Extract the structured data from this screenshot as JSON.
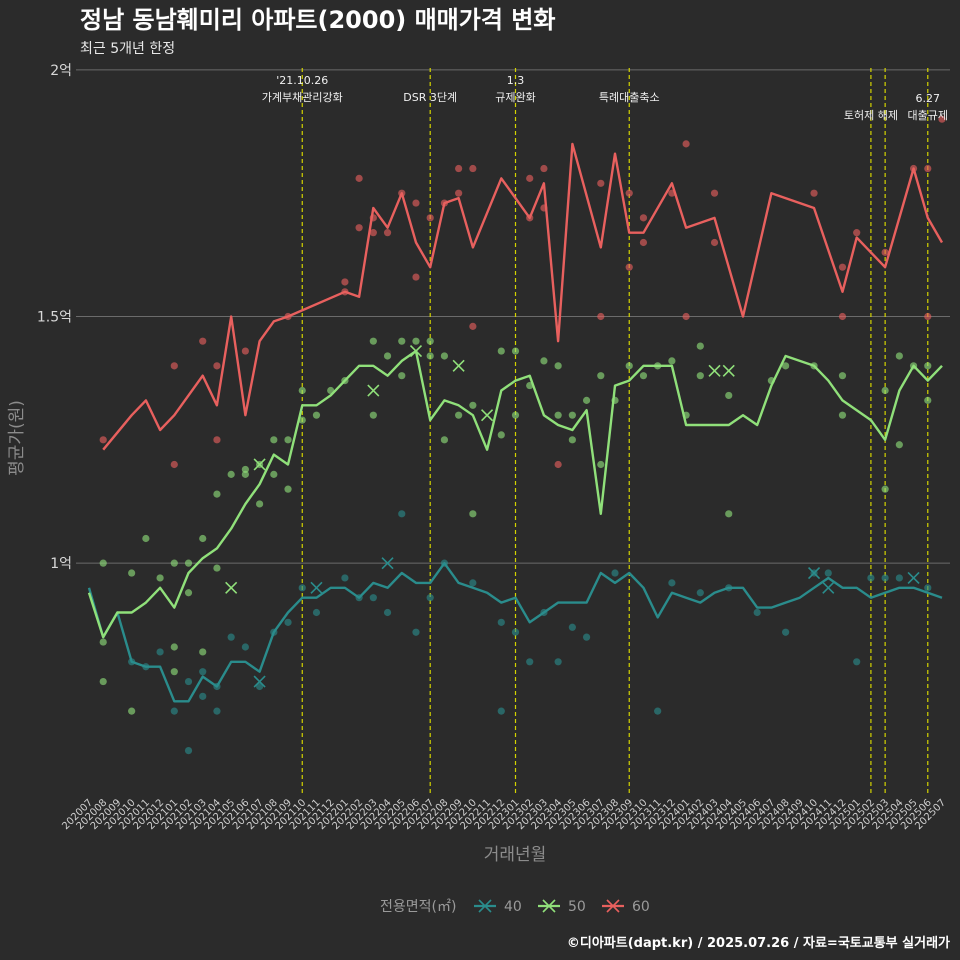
{
  "chart_data": {
    "type": "line",
    "title": "정남 동남훼미리 아파트(2000) 매매가격 변화",
    "subtitle": "최근 5개년 한정",
    "xlabel": "거래년월",
    "ylabel": "평균가(원)",
    "caption": "©디아파트(dapt.kr) / 2025.07.26 / 자료=국토교통부 실거래가",
    "y_unit": "억원",
    "ylim": [
      0.53,
      2.02
    ],
    "y_ticks": [
      {
        "value": 1,
        "label": "1억"
      },
      {
        "value": 1.5,
        "label": "1.5억"
      },
      {
        "value": 2,
        "label": "2억"
      }
    ],
    "grid": true,
    "x_ticks": [
      "202007",
      "202008",
      "202009",
      "202010",
      "202011",
      "202012",
      "202101",
      "202102",
      "202103",
      "202104",
      "202105",
      "202106",
      "202107",
      "202108",
      "202109",
      "202110",
      "202111",
      "202112",
      "202201",
      "202202",
      "202203",
      "202204",
      "202205",
      "202206",
      "202207",
      "202208",
      "202209",
      "202210",
      "202211",
      "202212",
      "202301",
      "202302",
      "202303",
      "202304",
      "202305",
      "202306",
      "202307",
      "202308",
      "202309",
      "202310",
      "202311",
      "202312",
      "202401",
      "202402",
      "202403",
      "202404",
      "202405",
      "202406",
      "202407",
      "202408",
      "202409",
      "202410",
      "202411",
      "202412",
      "202501",
      "202502",
      "202503",
      "202504",
      "202505",
      "202506",
      "202507"
    ],
    "legend": {
      "title": "전용면적(㎡)",
      "position": "bottom"
    },
    "annotations": [
      {
        "x": "202110",
        "lines": [
          "'21.10.26",
          "가계부채관리강화"
        ],
        "level": 0
      },
      {
        "x": "202207",
        "lines": [
          "DSR 3단계"
        ],
        "level": 2
      },
      {
        "x": "202301",
        "lines": [
          "1.3",
          "규제완화"
        ],
        "level": 0
      },
      {
        "x": "202309",
        "lines": [
          "특례대출축소"
        ],
        "level": 2
      },
      {
        "x": "202502",
        "lines": [
          "토허제 해제"
        ],
        "level": 1
      },
      {
        "x": "202503",
        "lines": [],
        "level": 1
      },
      {
        "x": "202506",
        "lines": [
          "6.27",
          "대출규제"
        ],
        "level": 3
      }
    ],
    "series": [
      {
        "name": "40",
        "color": "#2a8c8c",
        "x": [
          "202007",
          "202008",
          "202009",
          "202010",
          "202011",
          "202012",
          "202101",
          "202102",
          "202103",
          "202104",
          "202105",
          "202106",
          "202107",
          "202108",
          "202109",
          "202110",
          "202111",
          "202112",
          "202201",
          "202202",
          "202203",
          "202204",
          "202205",
          "202206",
          "202207",
          "202208",
          "202209",
          "202210",
          "202211",
          "202212",
          "202301",
          "202302",
          "202303",
          "202304",
          "202305",
          "202306",
          "202307",
          "202308",
          "202309",
          "202310",
          "202311",
          "202312",
          "202401",
          "202402",
          "202403",
          "202404",
          "202405",
          "202406",
          "202407",
          "202408",
          "202409",
          "202410",
          "202411",
          "202412",
          "202501",
          "202502",
          "202503",
          "202504",
          "202505",
          "202506",
          "202507"
        ],
        "values": [
          0.95,
          0.85,
          0.9,
          0.8,
          0.79,
          0.79,
          0.72,
          0.72,
          0.77,
          0.75,
          0.8,
          0.8,
          0.78,
          0.86,
          0.9,
          0.93,
          0.93,
          0.95,
          0.95,
          0.93,
          0.96,
          0.95,
          0.98,
          0.96,
          0.96,
          1.0,
          0.96,
          0.95,
          0.94,
          0.92,
          0.93,
          0.88,
          0.9,
          0.92,
          0.92,
          0.92,
          0.98,
          0.96,
          0.98,
          0.95,
          0.89,
          0.94,
          0.93,
          0.92,
          0.94,
          0.95,
          0.95,
          0.91,
          0.91,
          0.92,
          0.93,
          0.95,
          0.97,
          0.95,
          0.95,
          0.93,
          0.94,
          0.95,
          0.95,
          0.94,
          0.93
        ]
      },
      {
        "name": "50",
        "color": "#90e07a",
        "x": [
          "202007",
          "202008",
          "202009",
          "202010",
          "202011",
          "202012",
          "202101",
          "202102",
          "202103",
          "202104",
          "202105",
          "202106",
          "202107",
          "202108",
          "202109",
          "202110",
          "202111",
          "202112",
          "202201",
          "202202",
          "202203",
          "202204",
          "202205",
          "202206",
          "202207",
          "202208",
          "202209",
          "202210",
          "202211",
          "202212",
          "202301",
          "202302",
          "202303",
          "202304",
          "202305",
          "202306",
          "202307",
          "202308",
          "202309",
          "202310",
          "202311",
          "202312",
          "202401",
          "202402",
          "202403",
          "202404",
          "202405",
          "202406",
          "202407",
          "202408",
          "202409",
          "202410",
          "202411",
          "202412",
          "202501",
          "202502",
          "202503",
          "202504",
          "202505",
          "202506",
          "202507"
        ],
        "values": [
          0.94,
          0.85,
          0.9,
          0.9,
          0.92,
          0.95,
          0.91,
          0.98,
          1.01,
          1.03,
          1.07,
          1.12,
          1.16,
          1.22,
          1.2,
          1.32,
          1.32,
          1.34,
          1.37,
          1.4,
          1.4,
          1.38,
          1.41,
          1.43,
          1.29,
          1.33,
          1.32,
          1.3,
          1.23,
          1.35,
          1.37,
          1.38,
          1.3,
          1.28,
          1.27,
          1.31,
          1.1,
          1.36,
          1.37,
          1.4,
          1.4,
          1.4,
          1.28,
          1.28,
          1.28,
          1.28,
          1.3,
          1.28,
          1.36,
          1.42,
          1.41,
          1.4,
          1.37,
          1.33,
          1.31,
          1.29,
          1.25,
          1.35,
          1.4,
          1.37,
          1.4
        ]
      },
      {
        "name": "60",
        "color": "#e8605e",
        "x": [
          "202008",
          "202010",
          "202011",
          "202012",
          "202101",
          "202103",
          "202104",
          "202105",
          "202106",
          "202107",
          "202108",
          "202109",
          "202201",
          "202202",
          "202203",
          "202204",
          "202205",
          "202206",
          "202207",
          "202208",
          "202209",
          "202210",
          "202212",
          "202302",
          "202303",
          "202304",
          "202305",
          "202307",
          "202308",
          "202309",
          "202310",
          "202312",
          "202401",
          "202403",
          "202405",
          "202407",
          "202410",
          "202412",
          "202501",
          "202503",
          "202505",
          "202506",
          "202507"
        ],
        "values": [
          1.23,
          1.3,
          1.33,
          1.27,
          1.3,
          1.38,
          1.32,
          1.5,
          1.3,
          1.45,
          1.49,
          1.5,
          1.55,
          1.54,
          1.72,
          1.68,
          1.75,
          1.65,
          1.6,
          1.73,
          1.74,
          1.64,
          1.78,
          1.7,
          1.77,
          1.45,
          1.85,
          1.64,
          1.83,
          1.67,
          1.67,
          1.77,
          1.68,
          1.7,
          1.5,
          1.75,
          1.72,
          1.55,
          1.66,
          1.6,
          1.8,
          1.7,
          1.65
        ]
      }
    ],
    "scatter_points": {
      "40": [
        [
          "202010",
          0.8
        ],
        [
          "202011",
          0.79
        ],
        [
          "202012",
          0.82
        ],
        [
          "202101",
          0.7
        ],
        [
          "202102",
          0.62
        ],
        [
          "202102",
          0.76
        ],
        [
          "202103",
          0.78
        ],
        [
          "202103",
          0.73
        ],
        [
          "202104",
          0.75
        ],
        [
          "202104",
          0.7
        ],
        [
          "202105",
          0.85
        ],
        [
          "202106",
          0.83
        ],
        [
          "202107",
          0.75
        ],
        [
          "202108",
          0.86
        ],
        [
          "202109",
          0.88
        ],
        [
          "202110",
          0.95
        ],
        [
          "202111",
          0.9
        ],
        [
          "202201",
          0.97
        ],
        [
          "202202",
          0.93
        ],
        [
          "202203",
          0.93
        ],
        [
          "202204",
          0.9
        ],
        [
          "202205",
          1.1
        ],
        [
          "202206",
          0.86
        ],
        [
          "202207",
          0.93
        ],
        [
          "202208",
          1.0
        ],
        [
          "202210",
          0.96
        ],
        [
          "202212",
          0.7
        ],
        [
          "202212",
          0.88
        ],
        [
          "202301",
          0.86
        ],
        [
          "202302",
          0.8
        ],
        [
          "202303",
          0.9
        ],
        [
          "202304",
          0.8
        ],
        [
          "202305",
          0.87
        ],
        [
          "202306",
          0.85
        ],
        [
          "202308",
          0.98
        ],
        [
          "202311",
          0.7
        ],
        [
          "202312",
          0.96
        ],
        [
          "202402",
          0.94
        ],
        [
          "202404",
          0.95
        ],
        [
          "202406",
          0.9
        ],
        [
          "202408",
          0.86
        ],
        [
          "202410",
          0.98
        ],
        [
          "202411",
          0.98
        ],
        [
          "202501",
          0.8
        ],
        [
          "202502",
          0.97
        ],
        [
          "202503",
          0.97
        ],
        [
          "202504",
          0.97
        ],
        [
          "202506",
          0.95
        ]
      ],
      "50": [
        [
          "202008",
          0.84
        ],
        [
          "202008",
          0.76
        ],
        [
          "202008",
          1.0
        ],
        [
          "202010",
          0.98
        ],
        [
          "202010",
          0.7
        ],
        [
          "202011",
          1.05
        ],
        [
          "202012",
          0.97
        ],
        [
          "202101",
          0.83
        ],
        [
          "202101",
          0.78
        ],
        [
          "202101",
          1.0
        ],
        [
          "202102",
          0.94
        ],
        [
          "202102",
          1.0
        ],
        [
          "202103",
          1.05
        ],
        [
          "202103",
          0.82
        ],
        [
          "202104",
          1.14
        ],
        [
          "202104",
          0.99
        ],
        [
          "202105",
          1.18
        ],
        [
          "202106",
          1.18
        ],
        [
          "202106",
          1.19
        ],
        [
          "202107",
          1.12
        ],
        [
          "202107",
          1.2
        ],
        [
          "202108",
          1.25
        ],
        [
          "202108",
          1.18
        ],
        [
          "202109",
          1.15
        ],
        [
          "202109",
          1.25
        ],
        [
          "202110",
          1.29
        ],
        [
          "202110",
          1.35
        ],
        [
          "202111",
          1.3
        ],
        [
          "202112",
          1.35
        ],
        [
          "202201",
          1.37
        ],
        [
          "202203",
          1.45
        ],
        [
          "202203",
          1.3
        ],
        [
          "202204",
          1.42
        ],
        [
          "202205",
          1.45
        ],
        [
          "202205",
          1.38
        ],
        [
          "202206",
          1.45
        ],
        [
          "202207",
          1.45
        ],
        [
          "202207",
          1.42
        ],
        [
          "202208",
          1.42
        ],
        [
          "202208",
          1.25
        ],
        [
          "202209",
          1.3
        ],
        [
          "202210",
          1.1
        ],
        [
          "202210",
          1.32
        ],
        [
          "202212",
          1.43
        ],
        [
          "202212",
          1.26
        ],
        [
          "202301",
          1.43
        ],
        [
          "202301",
          1.3
        ],
        [
          "202302",
          1.36
        ],
        [
          "202303",
          1.41
        ],
        [
          "202304",
          1.4
        ],
        [
          "202304",
          1.3
        ],
        [
          "202305",
          1.3
        ],
        [
          "202305",
          1.25
        ],
        [
          "202306",
          1.33
        ],
        [
          "202307",
          1.2
        ],
        [
          "202307",
          1.38
        ],
        [
          "202308",
          1.33
        ],
        [
          "202309",
          1.4
        ],
        [
          "202310",
          1.38
        ],
        [
          "202311",
          1.4
        ],
        [
          "202312",
          1.41
        ],
        [
          "202401",
          1.3
        ],
        [
          "202402",
          1.44
        ],
        [
          "202402",
          1.38
        ],
        [
          "202404",
          1.1
        ],
        [
          "202404",
          1.34
        ],
        [
          "202407",
          1.37
        ],
        [
          "202408",
          1.4
        ],
        [
          "202410",
          1.4
        ],
        [
          "202412",
          1.38
        ],
        [
          "202412",
          1.3
        ],
        [
          "202503",
          1.15
        ],
        [
          "202503",
          1.35
        ],
        [
          "202504",
          1.42
        ],
        [
          "202504",
          1.24
        ],
        [
          "202505",
          1.4
        ],
        [
          "202506",
          1.4
        ],
        [
          "202506",
          1.33
        ]
      ],
      "60": [
        [
          "202008",
          1.25
        ],
        [
          "202101",
          1.2
        ],
        [
          "202101",
          1.4
        ],
        [
          "202103",
          1.45
        ],
        [
          "202104",
          1.4
        ],
        [
          "202104",
          1.25
        ],
        [
          "202106",
          1.43
        ],
        [
          "202109",
          1.5
        ],
        [
          "202201",
          1.55
        ],
        [
          "202201",
          1.57
        ],
        [
          "202202",
          1.78
        ],
        [
          "202202",
          1.68
        ],
        [
          "202203",
          1.7
        ],
        [
          "202203",
          1.67
        ],
        [
          "202204",
          1.67
        ],
        [
          "202205",
          1.75
        ],
        [
          "202206",
          1.58
        ],
        [
          "202206",
          1.73
        ],
        [
          "202207",
          1.7
        ],
        [
          "202208",
          1.73
        ],
        [
          "202209",
          1.8
        ],
        [
          "202209",
          1.75
        ],
        [
          "202210",
          1.8
        ],
        [
          "202210",
          1.48
        ],
        [
          "202302",
          1.7
        ],
        [
          "202302",
          1.78
        ],
        [
          "202303",
          1.8
        ],
        [
          "202303",
          1.72
        ],
        [
          "202304",
          1.2
        ],
        [
          "202307",
          1.77
        ],
        [
          "202307",
          1.5
        ],
        [
          "202309",
          1.6
        ],
        [
          "202309",
          1.75
        ],
        [
          "202310",
          1.65
        ],
        [
          "202310",
          1.7
        ],
        [
          "202312",
          1.75
        ],
        [
          "202401",
          1.85
        ],
        [
          "202401",
          1.5
        ],
        [
          "202403",
          1.65
        ],
        [
          "202403",
          1.75
        ],
        [
          "202410",
          1.75
        ],
        [
          "202412",
          1.6
        ],
        [
          "202412",
          1.5
        ],
        [
          "202501",
          1.67
        ],
        [
          "202503",
          1.63
        ],
        [
          "202505",
          1.8
        ],
        [
          "202506",
          1.5
        ],
        [
          "202506",
          1.8
        ],
        [
          "202507",
          1.9
        ]
      ]
    },
    "cross_points": {
      "40": [
        [
          "202107",
          0.76
        ],
        [
          "202111",
          0.95
        ],
        [
          "202204",
          1.0
        ],
        [
          "202410",
          0.98
        ],
        [
          "202411",
          0.95
        ],
        [
          "202505",
          0.97
        ]
      ],
      "50": [
        [
          "202105",
          0.95
        ],
        [
          "202107",
          1.2
        ],
        [
          "202203",
          1.35
        ],
        [
          "202206",
          1.43
        ],
        [
          "202209",
          1.4
        ],
        [
          "202211",
          1.3
        ],
        [
          "202403",
          1.39
        ],
        [
          "202404",
          1.39
        ]
      ],
      "60": []
    }
  }
}
